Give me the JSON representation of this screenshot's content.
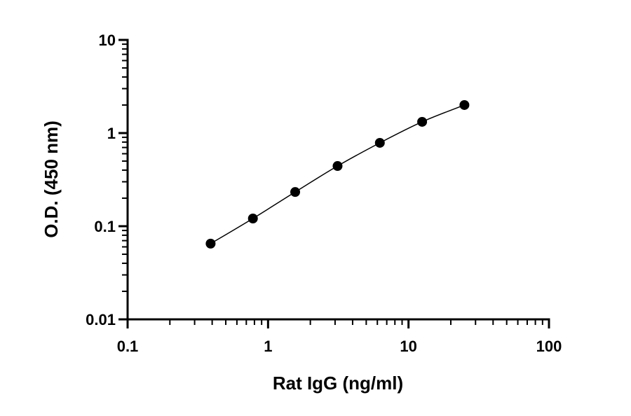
{
  "chart_data": {
    "type": "scatter",
    "xlabel": "Rat IgG (ng/ml)",
    "ylabel": "O.D. (450 nm)",
    "x": [
      0.39,
      0.78,
      1.56,
      3.125,
      6.25,
      12.5,
      25
    ],
    "y": [
      0.065,
      0.121,
      0.233,
      0.443,
      0.785,
      1.32,
      2.0
    ],
    "color": "#000000",
    "fit_line": true,
    "xscale": "log",
    "yscale": "log",
    "xlim": [
      0.1,
      100
    ],
    "ylim": [
      0.01,
      10
    ],
    "xticks": [
      0.1,
      1,
      10,
      100
    ],
    "yticks": [
      0.01,
      0.1,
      1,
      10
    ]
  }
}
